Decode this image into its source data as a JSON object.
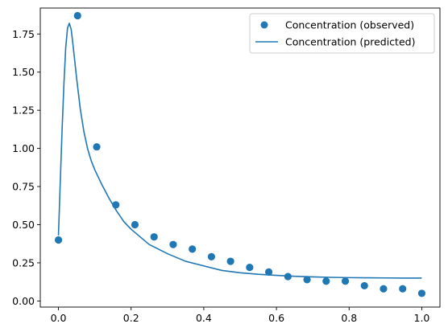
{
  "chart_data": {
    "type": "scatter",
    "xlim": [
      -0.05,
      1.05
    ],
    "ylim": [
      -0.04,
      1.92
    ],
    "x_ticks": [
      0.0,
      0.2,
      0.4,
      0.6,
      0.8,
      1.0
    ],
    "x_tick_labels": [
      "0.0",
      "0.2",
      "0.4",
      "0.6",
      "0.8",
      "1.0"
    ],
    "y_ticks": [
      0.0,
      0.25,
      0.5,
      0.75,
      1.0,
      1.25,
      1.5,
      1.75
    ],
    "y_tick_labels": [
      "0.00",
      "0.25",
      "0.50",
      "0.75",
      "1.00",
      "1.25",
      "1.50",
      "1.75"
    ],
    "grid": false,
    "legend_position": "top-right",
    "color": "#1f77b4",
    "series": [
      {
        "name": "Concentration (observed)",
        "kind": "scatter",
        "x": [
          0.0,
          0.0526,
          0.1053,
          0.1579,
          0.2105,
          0.2632,
          0.3158,
          0.3684,
          0.4211,
          0.4737,
          0.5263,
          0.5789,
          0.6316,
          0.6842,
          0.7368,
          0.7895,
          0.8421,
          0.8947,
          0.9474,
          1.0
        ],
        "y": [
          0.4,
          1.87,
          1.01,
          0.63,
          0.5,
          0.42,
          0.37,
          0.34,
          0.29,
          0.26,
          0.22,
          0.19,
          0.16,
          0.14,
          0.13,
          0.13,
          0.1,
          0.08,
          0.08,
          0.05
        ]
      },
      {
        "name": "Concentration (predicted)",
        "kind": "line",
        "x": [
          0.0,
          0.005,
          0.01,
          0.015,
          0.02,
          0.025,
          0.03,
          0.035,
          0.04,
          0.05,
          0.06,
          0.07,
          0.08,
          0.09,
          0.1,
          0.12,
          0.14,
          0.16,
          0.18,
          0.2,
          0.25,
          0.3,
          0.35,
          0.4,
          0.45,
          0.5,
          0.55,
          0.6,
          0.65,
          0.7,
          0.75,
          0.8,
          0.85,
          0.9,
          0.95,
          1.0
        ],
        "y": [
          0.43,
          0.78,
          1.12,
          1.42,
          1.66,
          1.79,
          1.82,
          1.78,
          1.68,
          1.46,
          1.26,
          1.11,
          1.0,
          0.92,
          0.86,
          0.76,
          0.67,
          0.59,
          0.52,
          0.47,
          0.37,
          0.31,
          0.26,
          0.23,
          0.2,
          0.185,
          0.175,
          0.168,
          0.162,
          0.158,
          0.155,
          0.153,
          0.152,
          0.151,
          0.15,
          0.15
        ]
      }
    ]
  }
}
